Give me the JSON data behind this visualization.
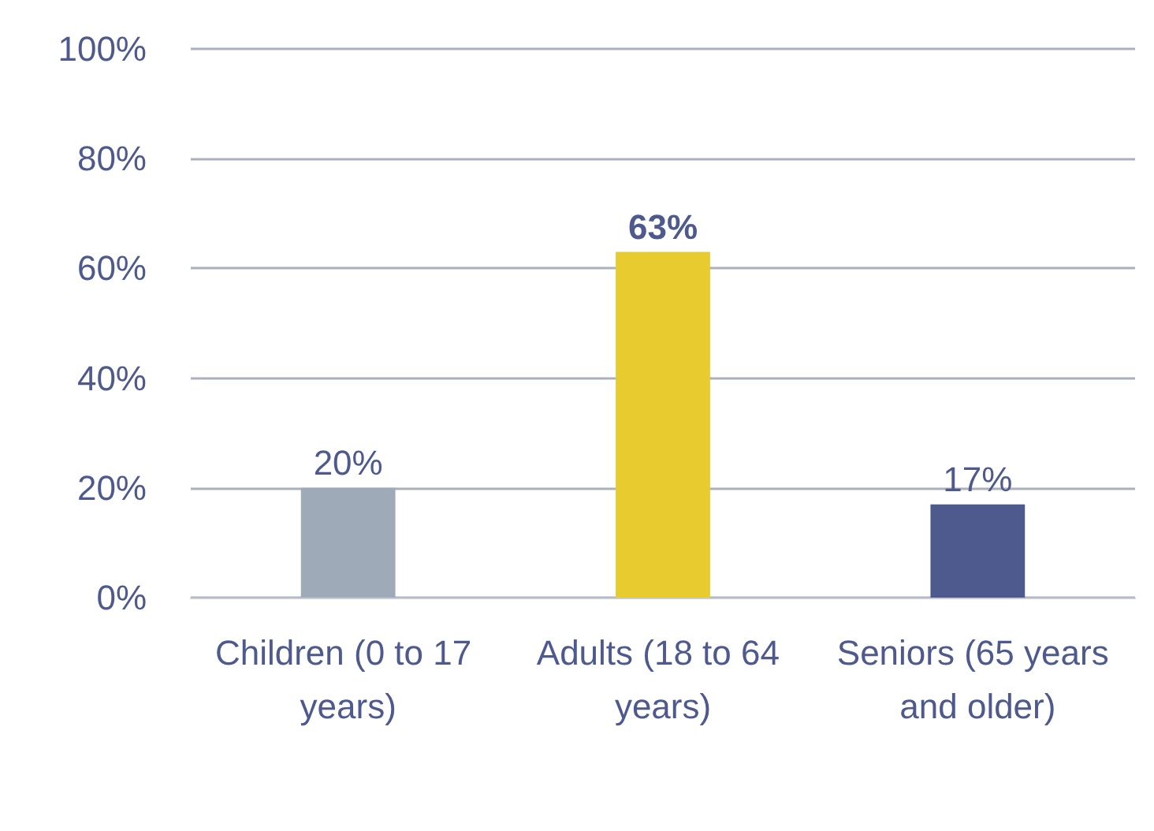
{
  "chart_data": {
    "type": "bar",
    "categories": [
      "Children (0 to 17 years)",
      "Adults (18 to 64 years)",
      "Seniors (65 years and older)"
    ],
    "values": [
      20,
      63,
      17
    ],
    "colors": [
      "#9eaab8",
      "#e8cb2f",
      "#4e5a8e"
    ],
    "value_labels": [
      "20%",
      "63%",
      "17%"
    ],
    "ylim": [
      0,
      100
    ],
    "yticks": [
      {
        "value": 0,
        "label": "0%"
      },
      {
        "value": 20,
        "label": "20%"
      },
      {
        "value": 40,
        "label": "40%"
      },
      {
        "value": 60,
        "label": "60%"
      },
      {
        "value": 80,
        "label": "80%"
      },
      {
        "value": 100,
        "label": "100%"
      }
    ],
    "grid": "y"
  }
}
